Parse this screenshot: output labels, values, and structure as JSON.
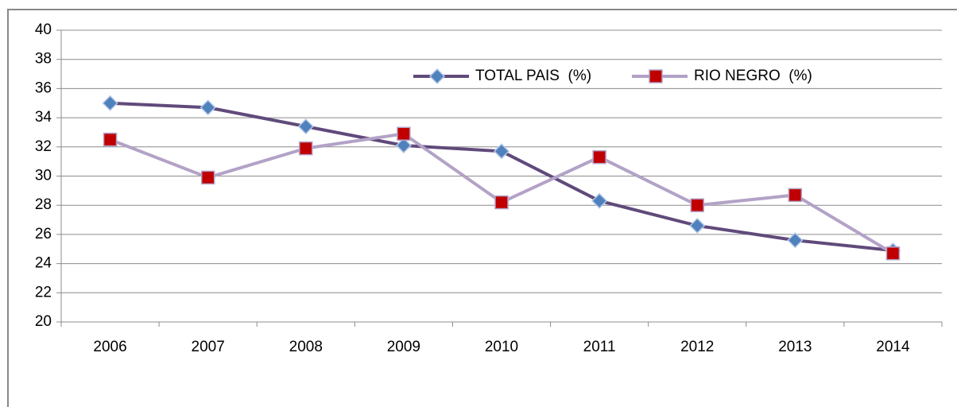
{
  "chart_data": {
    "type": "line",
    "categories": [
      "2006",
      "2007",
      "2008",
      "2009",
      "2010",
      "2011",
      "2012",
      "2013",
      "2014"
    ],
    "series": [
      {
        "name": "TOTAL PAIS  (%)",
        "color": "#604a7b",
        "marker": "diamond",
        "marker_color": "#4f81bd",
        "values": [
          35.0,
          34.7,
          33.4,
          32.1,
          31.7,
          28.3,
          26.6,
          25.6,
          24.9
        ]
      },
      {
        "name": "RIO NEGRO  (%)",
        "color": "#b3a2c7",
        "marker": "square",
        "marker_color": "#c00000",
        "values": [
          32.5,
          29.9,
          31.9,
          32.9,
          28.2,
          31.3,
          28.0,
          28.7,
          24.7
        ]
      }
    ],
    "ylim": [
      20,
      40
    ],
    "yticks": [
      20,
      22,
      24,
      26,
      28,
      30,
      32,
      34,
      36,
      38,
      40
    ],
    "grid": true,
    "legend": "top"
  }
}
